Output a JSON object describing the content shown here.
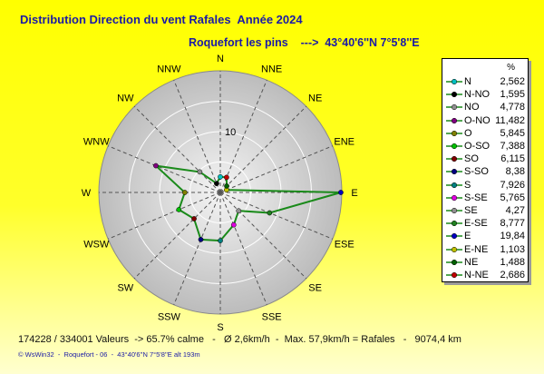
{
  "title": "Distribution Direction du vent Rafales  Année 2024",
  "subtitle": "Roquefort les pins    --->  43°40'6''N 7°5'8''E",
  "footer": "174228 / 334001 Valeurs  -> 65.7% calme   -   Ø 2,6km/h  -  Max. 57,9km/h = Rafales   -   9074,4 km",
  "credit": "© WsWin32  -  Roquefort - 06  -  43°40'6''N 7°5'8''E alt 193m",
  "chart_data": {
    "type": "radar",
    "ring_label": "10",
    "r_max": 20,
    "ring_step": 5,
    "line_color": "#1a8a1a",
    "legend_unit": "%",
    "directions": [
      "N",
      "NNE",
      "NE",
      "ENE",
      "E",
      "ESE",
      "SE",
      "SSE",
      "S",
      "SSW",
      "SW",
      "WSW",
      "W",
      "WNW",
      "NW",
      "NNW"
    ],
    "series": [
      {
        "label": "N",
        "value": "2,562",
        "v": 2.562,
        "color": "#00c0c0"
      },
      {
        "label": "N-NO",
        "value": "1,595",
        "v": 1.595,
        "color": "#000000"
      },
      {
        "label": "NO",
        "value": "4,778",
        "v": 4.778,
        "color": "#909090"
      },
      {
        "label": "O-NO",
        "value": "11,482",
        "v": 11.482,
        "color": "#800080"
      },
      {
        "label": "O",
        "value": "5,845",
        "v": 5.845,
        "color": "#808000"
      },
      {
        "label": "O-SO",
        "value": "7,388",
        "v": 7.388,
        "color": "#00c000"
      },
      {
        "label": "SO",
        "value": "6,115",
        "v": 6.115,
        "color": "#800000"
      },
      {
        "label": "S-SO",
        "value": "8,38",
        "v": 8.38,
        "color": "#000080"
      },
      {
        "label": "S",
        "value": "7,926",
        "v": 7.926,
        "color": "#008080"
      },
      {
        "label": "S-SE",
        "value": "5,765",
        "v": 5.765,
        "color": "#e000e0"
      },
      {
        "label": "SE",
        "value": "4,27",
        "v": 4.27,
        "color": "#909090"
      },
      {
        "label": "E-SE",
        "value": "8,777",
        "v": 8.777,
        "color": "#208020"
      },
      {
        "label": "E",
        "value": "19,84",
        "v": 19.84,
        "color": "#0000c0"
      },
      {
        "label": "E-NE",
        "value": "1,103",
        "v": 1.103,
        "color": "#c0c000"
      },
      {
        "label": "NE",
        "value": "1,488",
        "v": 1.488,
        "color": "#006000"
      },
      {
        "label": "N-NE",
        "value": "2,686",
        "v": 2.686,
        "color": "#c00000"
      }
    ]
  }
}
